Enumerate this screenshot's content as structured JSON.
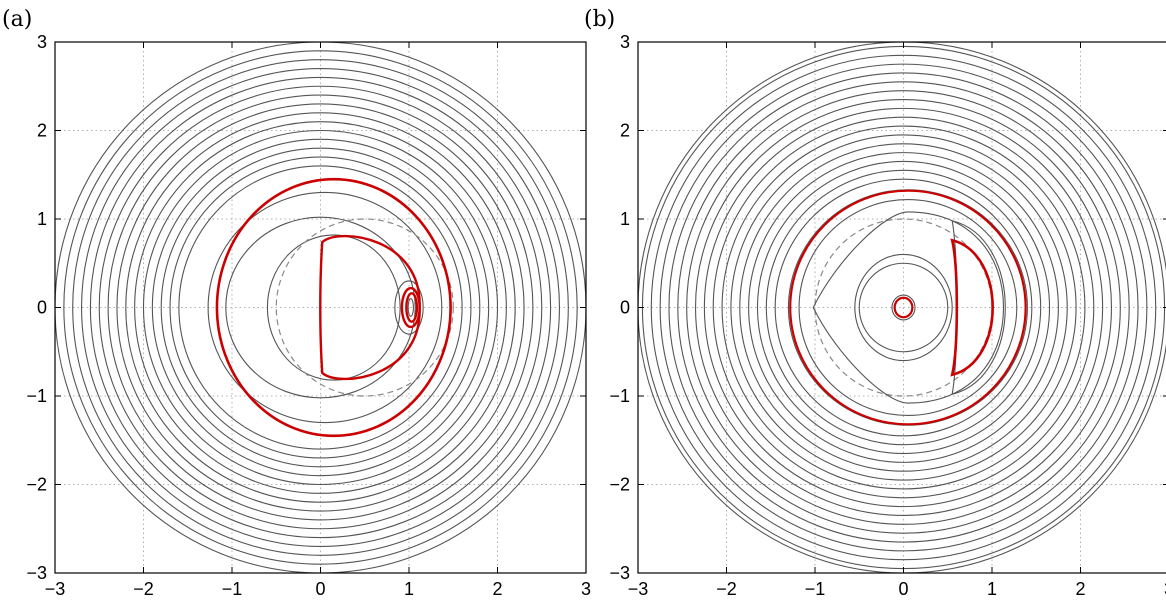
{
  "figure": {
    "panels": [
      {
        "label": "(a)"
      },
      {
        "label": "(b)"
      }
    ]
  },
  "colors": {
    "contour": "#555555",
    "highlight": "#cc0000",
    "dashed": "#8a8a8a",
    "grid": "#b0b0b0",
    "axes": "#000000"
  },
  "chart_data": [
    {
      "type": "line",
      "title": "",
      "xlabel": "",
      "ylabel": "",
      "xlim": [
        -3,
        3
      ],
      "ylim": [
        -3,
        3
      ],
      "xticks": [
        -3,
        -2,
        -1,
        0,
        1,
        2,
        3
      ],
      "yticks": [
        -3,
        -2,
        -1,
        0,
        1,
        2,
        3
      ],
      "xtick_labels": [
        "−3",
        "−2",
        "−1",
        "0",
        "1",
        "2",
        "3"
      ],
      "ytick_labels": [
        "−3",
        "−2",
        "−1",
        "0",
        "1",
        "2",
        "3"
      ],
      "grid": true,
      "gray_circles": {
        "center": [
          0,
          0
        ],
        "radii": [
          1.6,
          1.7,
          1.8,
          1.9,
          2.0,
          2.1,
          2.2,
          2.3,
          2.4,
          2.5,
          2.6,
          2.7,
          2.8,
          2.9,
          3.0
        ]
      },
      "gray_closed_curves": [
        {
          "center": [
            0.05,
            0
          ],
          "rx": 1.32,
          "ry": 1.3
        },
        {
          "center": [
            0.0,
            0
          ],
          "rx": 1.07,
          "ry": 1.02
        },
        {
          "center": [
            0.15,
            0
          ],
          "rx": 0.75,
          "ry": 0.82
        }
      ],
      "dashed_circle": {
        "center": [
          0.5,
          0
        ],
        "radius": 1.0
      },
      "red_curves": [
        {
          "center": [
            0.15,
            0
          ],
          "rx": 1.32,
          "ry": 1.45
        },
        {
          "center": [
            1.02,
            0
          ],
          "rx": 0.1,
          "ry": 0.22
        },
        {
          "center": [
            1.03,
            0
          ],
          "rx": 0.06,
          "ry": 0.16
        }
      ],
      "red_d_shape": {
        "left_x": 0.02,
        "right_x": 1.1,
        "top_y": 0.87,
        "bottom_y": -0.87
      },
      "gray_small_loops": [
        {
          "center": [
            1.0,
            0
          ],
          "rx": 0.16,
          "ry": 0.3
        },
        {
          "center": [
            1.02,
            0
          ],
          "rx": 0.03,
          "ry": 0.1
        }
      ]
    },
    {
      "type": "line",
      "title": "",
      "xlabel": "",
      "ylabel": "",
      "xlim": [
        -3,
        3
      ],
      "ylim": [
        -3,
        3
      ],
      "xticks": [
        -3,
        -2,
        -1,
        0,
        1,
        2,
        3
      ],
      "yticks": [
        -3,
        -2,
        -1,
        0,
        1,
        2,
        3
      ],
      "xtick_labels": [
        "−3",
        "−2",
        "−1",
        "0",
        "1",
        "2",
        "3"
      ],
      "ytick_labels": [
        "−3",
        "−2",
        "−1",
        "0",
        "1",
        "2",
        "3"
      ],
      "grid": true,
      "gray_circles": {
        "center": [
          0,
          0
        ],
        "radii": [
          1.45,
          1.55,
          1.65,
          1.75,
          1.85,
          1.95,
          2.05,
          2.15,
          2.25,
          2.35,
          2.45,
          2.55,
          2.65,
          2.75,
          2.85,
          2.95,
          3.0
        ]
      },
      "gray_closed_curves": [
        {
          "center": [
            0.05,
            0
          ],
          "rx": 1.35,
          "ry": 1.33
        },
        {
          "center": [
            0.05,
            0
          ],
          "rx": 1.23,
          "ry": 1.22
        },
        {
          "center": [
            0.0,
            0
          ],
          "rx": 0.55,
          "ry": 0.6
        },
        {
          "center": [
            0.0,
            0
          ],
          "rx": 0.5,
          "ry": 0.5
        },
        {
          "center": [
            0.0,
            0
          ],
          "rx": 0.13,
          "ry": 0.14
        }
      ],
      "dashed_circle": {
        "center": [
          0,
          0
        ],
        "radius": 1.0
      },
      "red_curves": [
        {
          "center": [
            0.05,
            0
          ],
          "rx": 1.33,
          "ry": 1.32
        },
        {
          "center": [
            0.0,
            0
          ],
          "rx": 0.1,
          "ry": 0.11
        }
      ],
      "red_crescent": {
        "outer": {
          "center": [
            0.15,
            0
          ],
          "rx": 0.88,
          "ry": 0.78
        },
        "inner": {
          "center": [
            0.0,
            0
          ],
          "rx": 0.75,
          "ry": 0.85
        }
      },
      "gray_crescent": {
        "outer": {
          "center": [
            0.15,
            0
          ],
          "rx": 1.05,
          "ry": 0.98
        },
        "inner": {
          "center": [
            0.0,
            0
          ],
          "rx": 0.78,
          "ry": 0.95
        }
      },
      "cusp_curve": {
        "center": [
          0.05,
          0
        ],
        "rx": 1.08,
        "ry": 1.08
      }
    }
  ]
}
